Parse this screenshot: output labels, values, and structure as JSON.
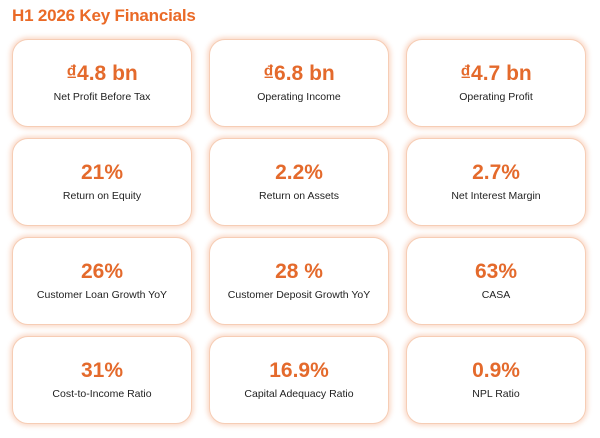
{
  "title": "H1 2026 Key Financials",
  "accent_color": "#e46a2c",
  "border_color": "#f6cdb5",
  "metrics": [
    {
      "value": "₫4.8 bn",
      "label": "Net Profit Before Tax"
    },
    {
      "value": "₫6.8 bn",
      "label": "Operating Income"
    },
    {
      "value": "₫4.7 bn",
      "label": "Operating Profit"
    },
    {
      "value": "21%",
      "label": "Return on Equity"
    },
    {
      "value": "2.2%",
      "label": "Return on Assets"
    },
    {
      "value": "2.7%",
      "label": "Net Interest Margin"
    },
    {
      "value": "26%",
      "label": "Customer Loan Growth YoY"
    },
    {
      "value": "28 %",
      "label": "Customer Deposit Growth YoY"
    },
    {
      "value": "63%",
      "label": "CASA"
    },
    {
      "value": "31%",
      "label": "Cost-to-Income Ratio"
    },
    {
      "value": "16.9%",
      "label": "Capital Adequacy Ratio"
    },
    {
      "value": "0.9%",
      "label": "NPL Ratio"
    }
  ]
}
